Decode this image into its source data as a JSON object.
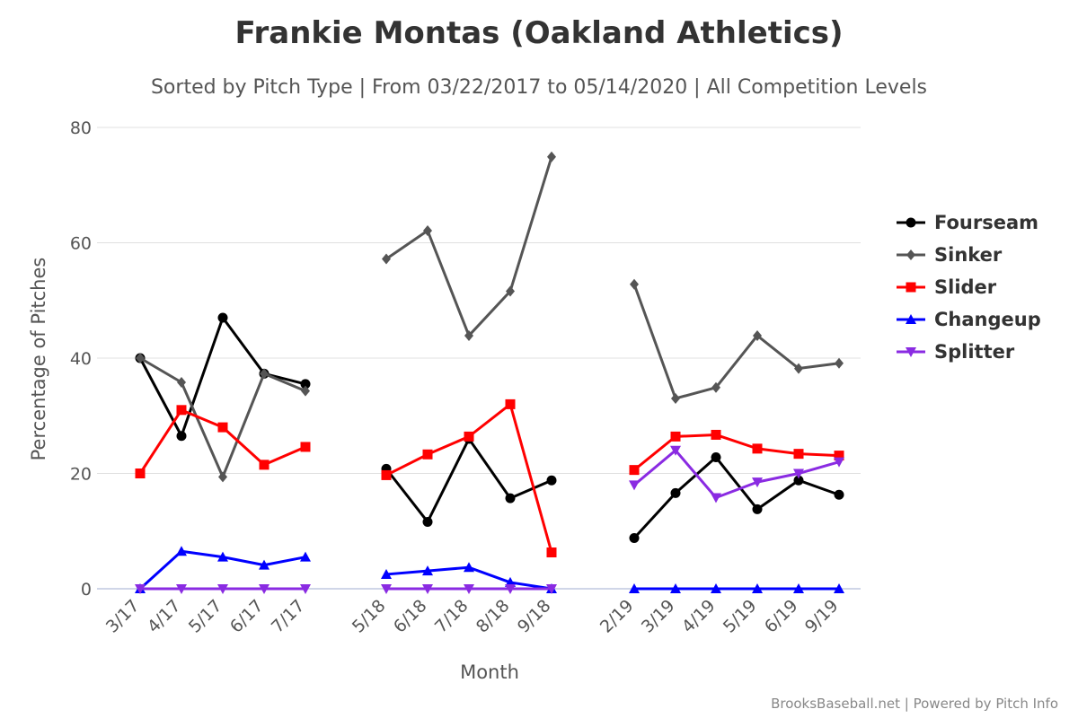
{
  "chart_data": {
    "type": "line",
    "title": "Frankie Montas (Oakland Athletics)",
    "subtitle": "Sorted by Pitch Type | From 03/22/2017 to 05/14/2020 | All Competition Levels",
    "xlabel": "Month",
    "ylabel": "Percentage of Pitches",
    "ylim": [
      0,
      80
    ],
    "yticks": [
      0,
      20,
      40,
      60,
      80
    ],
    "grid": true,
    "legend_position": "right",
    "categories": [
      "3/17",
      "4/17",
      "5/17",
      "6/17",
      "7/17",
      "5/18",
      "6/18",
      "7/18",
      "8/18",
      "9/18",
      "2/19",
      "3/19",
      "4/19",
      "5/19",
      "6/19",
      "9/19"
    ],
    "segments": [
      [
        0,
        4
      ],
      [
        5,
        9
      ],
      [
        10,
        15
      ]
    ],
    "series": [
      {
        "name": "Fourseam",
        "color": "#000000",
        "marker": "circle",
        "values": [
          40.0,
          26.5,
          47.0,
          37.3,
          35.5,
          20.8,
          11.6,
          26.0,
          15.7,
          18.8,
          8.8,
          16.6,
          22.8,
          13.8,
          18.8,
          16.3
        ]
      },
      {
        "name": "Sinker",
        "color": "#555555",
        "marker": "diamond",
        "values": [
          40.0,
          35.8,
          19.4,
          37.3,
          34.3,
          57.2,
          62.1,
          43.9,
          51.6,
          74.9,
          52.8,
          33.0,
          34.9,
          43.9,
          38.2,
          39.1
        ]
      },
      {
        "name": "Slider",
        "color": "#ff0000",
        "marker": "square",
        "values": [
          20.0,
          31.0,
          28.0,
          21.5,
          24.6,
          19.7,
          23.3,
          26.4,
          32.0,
          6.3,
          20.6,
          26.4,
          26.7,
          24.3,
          23.4,
          23.1
        ]
      },
      {
        "name": "Changeup",
        "color": "#0000ff",
        "marker": "triangle",
        "values": [
          0.0,
          6.5,
          5.5,
          4.1,
          5.5,
          2.5,
          3.1,
          3.7,
          1.1,
          0.0,
          0.0,
          0.0,
          0.0,
          0.0,
          0.0,
          0.0
        ]
      },
      {
        "name": "Splitter",
        "color": "#8a2be2",
        "marker": "triangle-down",
        "values": [
          0.0,
          0.0,
          0.0,
          0.0,
          0.0,
          0.0,
          0.0,
          0.0,
          0.0,
          0.0,
          18.0,
          24.0,
          15.8,
          18.5,
          20.0,
          22.0
        ]
      }
    ]
  },
  "credits": "BrooksBaseball.net | Powered by Pitch Info"
}
